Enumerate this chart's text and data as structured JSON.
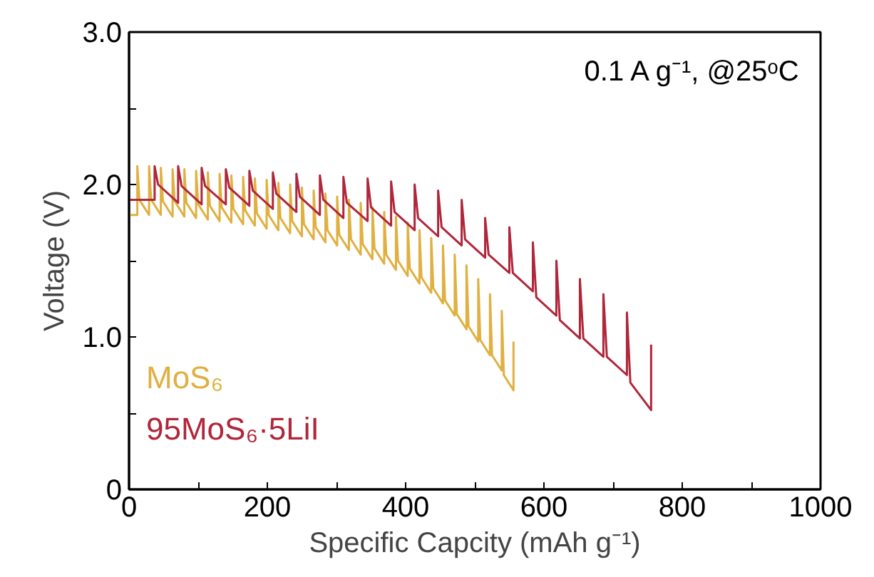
{
  "chart_data": {
    "type": "line",
    "xlabel": "Specific Capcity (mAh g⁻¹)",
    "ylabel": "Voltage (V)",
    "xlim": [
      0,
      1000
    ],
    "ylim": [
      0,
      3.0
    ],
    "xticks": [
      0,
      {
        "value": 100,
        "label": null
      },
      200,
      {
        "value": 300,
        "label": null
      },
      400,
      {
        "value": 500,
        "label": null
      },
      600,
      {
        "value": 700,
        "label": null
      },
      800,
      {
        "value": 900,
        "label": null
      },
      1000
    ],
    "yticks": [
      0,
      {
        "value": 0.5,
        "label": null
      },
      {
        "value": 1.0,
        "label": "1.0"
      },
      {
        "value": 1.5,
        "label": null
      },
      {
        "value": 2.0,
        "label": "2.0"
      },
      {
        "value": 2.5,
        "label": null
      },
      {
        "value": 3.0,
        "label": "3.0"
      }
    ],
    "grid": false,
    "legend": "bottom left",
    "marker": "none",
    "line_style": "solid",
    "annotations": [
      "0.1 A g⁻¹, @25ᵒC"
    ],
    "series": [
      {
        "name": "MoS₆",
        "color": "#e0b040",
        "x": [
          0,
          12,
          12,
          15,
          29,
          29,
          32,
          46,
          46,
          49,
          63,
          63,
          66,
          80,
          80,
          83,
          97,
          97,
          100,
          114,
          114,
          117,
          131,
          131,
          134,
          148,
          148,
          151,
          165,
          165,
          168,
          182,
          182,
          185,
          199,
          199,
          202,
          216,
          216,
          219,
          233,
          233,
          236,
          250,
          250,
          253,
          267,
          267,
          270,
          284,
          284,
          287,
          301,
          301,
          304,
          318,
          318,
          321,
          335,
          335,
          338,
          352,
          352,
          355,
          369,
          369,
          372,
          386,
          386,
          389,
          403,
          403,
          406,
          420,
          420,
          423,
          437,
          437,
          440,
          454,
          454,
          457,
          471,
          471,
          474,
          488,
          488,
          491,
          505,
          505,
          508,
          522,
          522,
          525,
          539,
          539,
          542,
          556,
          556
        ],
        "values": [
          1.8,
          1.8,
          2.12,
          1.9,
          1.8,
          2.12,
          1.9,
          1.8,
          2.11,
          1.89,
          1.79,
          2.1,
          1.89,
          1.79,
          2.1,
          1.88,
          1.78,
          2.09,
          1.87,
          1.77,
          2.08,
          1.86,
          1.76,
          2.07,
          1.85,
          1.75,
          2.06,
          1.84,
          1.74,
          2.05,
          1.83,
          1.73,
          2.04,
          1.81,
          1.71,
          2.03,
          1.8,
          1.7,
          2.01,
          1.78,
          1.68,
          2.0,
          1.76,
          1.66,
          1.98,
          1.74,
          1.64,
          1.96,
          1.72,
          1.62,
          1.94,
          1.7,
          1.6,
          1.92,
          1.67,
          1.57,
          1.9,
          1.64,
          1.54,
          1.88,
          1.61,
          1.51,
          1.85,
          1.58,
          1.48,
          1.82,
          1.54,
          1.44,
          1.79,
          1.5,
          1.4,
          1.75,
          1.45,
          1.35,
          1.7,
          1.39,
          1.29,
          1.65,
          1.32,
          1.22,
          1.6,
          1.24,
          1.14,
          1.54,
          1.15,
          1.05,
          1.47,
          1.07,
          0.97,
          1.38,
          0.98,
          0.88,
          1.28,
          0.88,
          0.78,
          1.17,
          0.75,
          0.65,
          0.97
        ]
      },
      {
        "name": "95MoS₆·5LiI",
        "color": "#b0263a",
        "x": [
          0,
          37,
          37,
          42,
          71,
          71,
          76,
          105,
          105,
          110,
          140,
          140,
          145,
          174,
          174,
          179,
          208,
          208,
          213,
          242,
          242,
          247,
          276,
          276,
          281,
          310,
          310,
          315,
          345,
          345,
          350,
          379,
          379,
          384,
          413,
          413,
          418,
          447,
          447,
          452,
          481,
          481,
          486,
          515,
          515,
          520,
          550,
          550,
          555,
          584,
          584,
          589,
          618,
          618,
          623,
          652,
          652,
          657,
          686,
          686,
          691,
          720,
          720,
          725,
          755,
          755
        ],
        "values": [
          1.9,
          1.9,
          2.12,
          2.0,
          1.88,
          2.12,
          1.99,
          1.87,
          2.11,
          1.99,
          1.87,
          2.1,
          1.98,
          1.86,
          2.09,
          1.96,
          1.84,
          2.08,
          1.94,
          1.82,
          2.07,
          1.92,
          1.8,
          2.06,
          1.9,
          1.78,
          2.05,
          1.88,
          1.76,
          2.04,
          1.85,
          1.73,
          2.02,
          1.82,
          1.7,
          2.0,
          1.78,
          1.66,
          1.96,
          1.72,
          1.6,
          1.9,
          1.64,
          1.52,
          1.78,
          1.54,
          1.42,
          1.72,
          1.42,
          1.3,
          1.62,
          1.26,
          1.14,
          1.5,
          1.11,
          0.99,
          1.38,
          0.99,
          0.87,
          1.28,
          0.87,
          0.75,
          1.16,
          0.7,
          0.52,
          0.95
        ]
      }
    ]
  }
}
